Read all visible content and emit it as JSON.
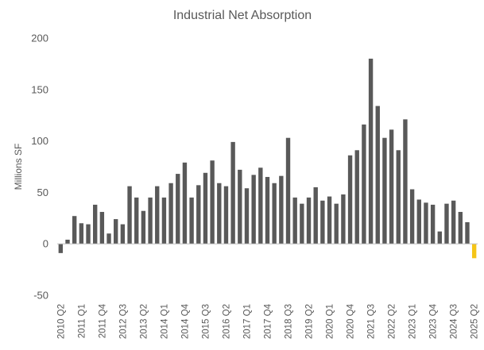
{
  "chart_data": {
    "type": "bar",
    "title": "Industrial Net Absorption",
    "xlabel": "",
    "ylabel": "Millions SF",
    "ylim": [
      -50,
      200
    ],
    "yticks": [
      200,
      150,
      100,
      50,
      0,
      -50
    ],
    "grid": false,
    "legend": "none",
    "categories": [
      "2010 Q2",
      "2010 Q3",
      "2010 Q4",
      "2011 Q1",
      "2011 Q2",
      "2011 Q3",
      "2011 Q4",
      "2012 Q1",
      "2012 Q2",
      "2012 Q3",
      "2012 Q4",
      "2013 Q1",
      "2013 Q2",
      "2013 Q3",
      "2013 Q4",
      "2014 Q1",
      "2014 Q2",
      "2014 Q3",
      "2014 Q4",
      "2015 Q1",
      "2015 Q2",
      "2015 Q3",
      "2015 Q4",
      "2016 Q1",
      "2016 Q2",
      "2016 Q3",
      "2016 Q4",
      "2017 Q1",
      "2017 Q2",
      "2017 Q3",
      "2017 Q4",
      "2018 Q1",
      "2018 Q2",
      "2018 Q3",
      "2018 Q4",
      "2019 Q1",
      "2019 Q2",
      "2019 Q3",
      "2019 Q4",
      "2020 Q1",
      "2020 Q2",
      "2020 Q3",
      "2020 Q4",
      "2021 Q1",
      "2021 Q2",
      "2021 Q3",
      "2021 Q4",
      "2022 Q1",
      "2022 Q2",
      "2022 Q3",
      "2022 Q4",
      "2023 Q1",
      "2023 Q2",
      "2023 Q3",
      "2023 Q4",
      "2024 Q1",
      "2024 Q2",
      "2024 Q3",
      "2024 Q4",
      "2025 Q1",
      "2025 Q2"
    ],
    "xtick_labels": [
      "2010 Q2",
      "2011 Q1",
      "2011 Q4",
      "2012 Q3",
      "2013 Q2",
      "2014 Q1",
      "2014 Q4",
      "2015 Q3",
      "2016 Q2",
      "2017 Q1",
      "2017 Q4",
      "2018 Q3",
      "2019 Q2",
      "2020 Q1",
      "2020 Q4",
      "2021 Q3",
      "2022 Q2",
      "2023 Q1",
      "2023 Q4",
      "2024 Q3",
      "2025 Q2"
    ],
    "values": [
      -9,
      4,
      27,
      20,
      19,
      38,
      31,
      10,
      24,
      19,
      56,
      45,
      32,
      45,
      56,
      45,
      59,
      68,
      79,
      45,
      57,
      69,
      81,
      59,
      56,
      99,
      72,
      54,
      67,
      74,
      65,
      59,
      66,
      103,
      45,
      39,
      45,
      55,
      42,
      46,
      39,
      48,
      86,
      91,
      116,
      180,
      134,
      103,
      111,
      91,
      121,
      53,
      43,
      40,
      38,
      12,
      39,
      42,
      31,
      21,
      -14
    ],
    "colors": {
      "bar": "#595959",
      "highlight": "#F5C518",
      "text": "#595959",
      "zero_line": "#bfbfbf"
    },
    "highlight_index": 60
  }
}
